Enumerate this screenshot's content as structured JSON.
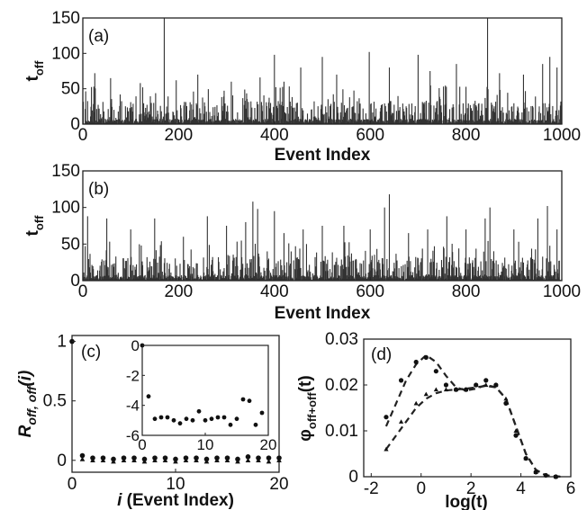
{
  "chart_data": [
    {
      "panel": "a",
      "type": "bar",
      "panel_label": "(a)",
      "xlabel": "Event Index",
      "ylabel_main": "t",
      "ylabel_sub": "off",
      "xlim": [
        0,
        1000
      ],
      "ylim": [
        0,
        150
      ],
      "xticks": [
        0,
        200,
        400,
        600,
        800,
        1000
      ],
      "yticks": [
        0,
        50,
        100,
        150
      ],
      "spikes": [
        {
          "x": 170,
          "y": 150
        },
        {
          "x": 845,
          "y": 150
        },
        {
          "x": 25,
          "y": 72
        },
        {
          "x": 58,
          "y": 65
        },
        {
          "x": 120,
          "y": 58
        },
        {
          "x": 195,
          "y": 62
        },
        {
          "x": 240,
          "y": 70
        },
        {
          "x": 310,
          "y": 60
        },
        {
          "x": 370,
          "y": 66
        },
        {
          "x": 400,
          "y": 98
        },
        {
          "x": 420,
          "y": 60
        },
        {
          "x": 455,
          "y": 80
        },
        {
          "x": 500,
          "y": 95
        },
        {
          "x": 530,
          "y": 70
        },
        {
          "x": 598,
          "y": 102
        },
        {
          "x": 640,
          "y": 80
        },
        {
          "x": 700,
          "y": 98
        },
        {
          "x": 725,
          "y": 75
        },
        {
          "x": 780,
          "y": 85
        },
        {
          "x": 870,
          "y": 72
        },
        {
          "x": 920,
          "y": 70
        },
        {
          "x": 960,
          "y": 85
        },
        {
          "x": 975,
          "y": 95
        },
        {
          "x": 990,
          "y": 80
        }
      ]
    },
    {
      "panel": "b",
      "type": "bar",
      "panel_label": "(b)",
      "xlabel": "Event Index",
      "ylabel_main": "t",
      "ylabel_sub": "off",
      "xlim": [
        0,
        1000
      ],
      "ylim": [
        0,
        150
      ],
      "xticks": [
        0,
        200,
        400,
        600,
        800,
        1000
      ],
      "yticks": [
        0,
        50,
        100,
        150
      ],
      "spikes": [
        {
          "x": 10,
          "y": 88
        },
        {
          "x": 50,
          "y": 85
        },
        {
          "x": 100,
          "y": 70
        },
        {
          "x": 150,
          "y": 85
        },
        {
          "x": 210,
          "y": 60
        },
        {
          "x": 260,
          "y": 88
        },
        {
          "x": 300,
          "y": 75
        },
        {
          "x": 340,
          "y": 80
        },
        {
          "x": 355,
          "y": 108
        },
        {
          "x": 365,
          "y": 98
        },
        {
          "x": 400,
          "y": 95
        },
        {
          "x": 420,
          "y": 65
        },
        {
          "x": 460,
          "y": 70
        },
        {
          "x": 500,
          "y": 75
        },
        {
          "x": 545,
          "y": 75
        },
        {
          "x": 600,
          "y": 70
        },
        {
          "x": 630,
          "y": 100
        },
        {
          "x": 640,
          "y": 118
        },
        {
          "x": 680,
          "y": 65
        },
        {
          "x": 720,
          "y": 70
        },
        {
          "x": 760,
          "y": 88
        },
        {
          "x": 800,
          "y": 70
        },
        {
          "x": 840,
          "y": 85
        },
        {
          "x": 850,
          "y": 100
        },
        {
          "x": 900,
          "y": 70
        },
        {
          "x": 950,
          "y": 85
        },
        {
          "x": 970,
          "y": 102
        },
        {
          "x": 990,
          "y": 70
        }
      ]
    },
    {
      "panel": "c",
      "type": "scatter",
      "panel_label": "(c)",
      "xlabel_italic": "i",
      "xlabel_rest": " (Event Index)",
      "ylabel": "R",
      "ylabel_sub": "off, off",
      "ylabel_suffix": "(i)",
      "xlim": [
        0,
        20
      ],
      "ylim": [
        -0.1,
        1.05
      ],
      "xticks": [
        0,
        10,
        20
      ],
      "yticks": [
        0,
        0.5,
        1
      ],
      "series": [
        {
          "marker": "circle",
          "x": [
            0,
            1,
            2,
            3,
            4,
            5,
            6,
            7,
            8,
            9,
            10,
            11,
            12,
            13,
            14,
            15,
            16,
            17,
            18,
            19,
            20
          ],
          "y": [
            1,
            0.04,
            0.02,
            0.02,
            0.01,
            0.02,
            0.02,
            0.01,
            0.02,
            0.02,
            0.01,
            0.02,
            0.02,
            0.01,
            0.02,
            0.02,
            0.01,
            0.03,
            0.02,
            0.02,
            0.02
          ]
        },
        {
          "marker": "triangle",
          "x": [
            1,
            2,
            3,
            4,
            5,
            6,
            7,
            8,
            9,
            10,
            11,
            12,
            13,
            14,
            15,
            16,
            17,
            18,
            19,
            20
          ],
          "y": [
            0.01,
            0.0,
            0.0,
            -0.01,
            0.0,
            0.0,
            -0.01,
            0.0,
            0.0,
            -0.01,
            0.0,
            0.0,
            -0.01,
            0.0,
            0.0,
            -0.01,
            0.0,
            0.0,
            -0.01,
            0.0
          ]
        }
      ],
      "inset": {
        "xlim": [
          0,
          20
        ],
        "ylim": [
          -6,
          0
        ],
        "xticks": [
          0,
          10,
          20
        ],
        "yticks": [
          0,
          -2,
          -4,
          -6
        ],
        "x": [
          0,
          1,
          2,
          3,
          4,
          5,
          6,
          7,
          8,
          9,
          10,
          11,
          12,
          13,
          14,
          15,
          16,
          17,
          18,
          19
        ],
        "y": [
          0,
          -3.4,
          -4.9,
          -4.8,
          -4.8,
          -5.0,
          -5.2,
          -4.9,
          -5.0,
          -4.4,
          -5.0,
          -4.9,
          -4.8,
          -4.8,
          -5.3,
          -4.9,
          -3.6,
          -3.7,
          -5.3,
          -4.5
        ]
      }
    },
    {
      "panel": "d",
      "type": "scatter",
      "panel_label": "(d)",
      "xlabel": "log(t)",
      "ylabel_main": "φ",
      "ylabel_sub": "off+off",
      "ylabel_suffix": "(t)",
      "xlim": [
        -2.3,
        6
      ],
      "ylim": [
        0,
        0.03
      ],
      "xticks": [
        -2,
        0,
        2,
        4,
        6
      ],
      "yticks": [
        0,
        0.01,
        0.02,
        0.03
      ],
      "ytick_labels": [
        "0",
        "0.01",
        "0.02",
        "0.03"
      ],
      "series": [
        {
          "marker": "circle",
          "x": [
            -1.4,
            -0.8,
            -0.2,
            0.2,
            0.6,
            1.0,
            1.4,
            1.8,
            2.2,
            2.6,
            3.0,
            3.4,
            3.8,
            4.2,
            4.6,
            5.0,
            5.4
          ],
          "y": [
            0.013,
            0.021,
            0.025,
            0.026,
            0.023,
            0.02,
            0.019,
            0.019,
            0.02,
            0.021,
            0.02,
            0.016,
            0.009,
            0.004,
            0.001,
            0.0003,
            0.0
          ]
        },
        {
          "marker": "triangle",
          "x": [
            -1.4,
            -0.8,
            -0.2,
            0.2,
            0.6,
            1.0,
            1.4,
            1.8,
            2.2,
            2.6,
            3.0,
            3.4,
            3.8,
            4.2,
            4.6,
            5.0,
            5.4
          ],
          "y": [
            0.006,
            0.012,
            0.016,
            0.018,
            0.019,
            0.019,
            0.019,
            0.019,
            0.02,
            0.02,
            0.02,
            0.017,
            0.01,
            0.004,
            0.001,
            0.0003,
            0.0
          ]
        }
      ],
      "fits": [
        {
          "x": [
            -1.4,
            -1.0,
            -0.6,
            -0.2,
            0.2,
            0.6,
            1.0,
            1.4,
            1.8,
            2.2,
            2.6,
            3.0,
            3.4,
            3.8,
            4.2,
            4.6,
            5.0,
            5.6
          ],
          "y": [
            0.011,
            0.016,
            0.021,
            0.0245,
            0.0265,
            0.025,
            0.022,
            0.0195,
            0.0188,
            0.0192,
            0.02,
            0.0195,
            0.017,
            0.011,
            0.005,
            0.0015,
            0.0003,
            0.0
          ]
        },
        {
          "x": [
            -1.4,
            -1.0,
            -0.6,
            -0.2,
            0.2,
            0.6,
            1.0,
            1.4,
            1.8,
            2.2,
            2.6,
            3.0,
            3.4,
            3.8,
            4.2,
            4.6,
            5.0,
            5.6
          ],
          "y": [
            0.006,
            0.009,
            0.012,
            0.015,
            0.017,
            0.0182,
            0.0188,
            0.019,
            0.0192,
            0.0195,
            0.0198,
            0.0195,
            0.017,
            0.011,
            0.005,
            0.0015,
            0.0003,
            0.0
          ]
        }
      ]
    }
  ]
}
